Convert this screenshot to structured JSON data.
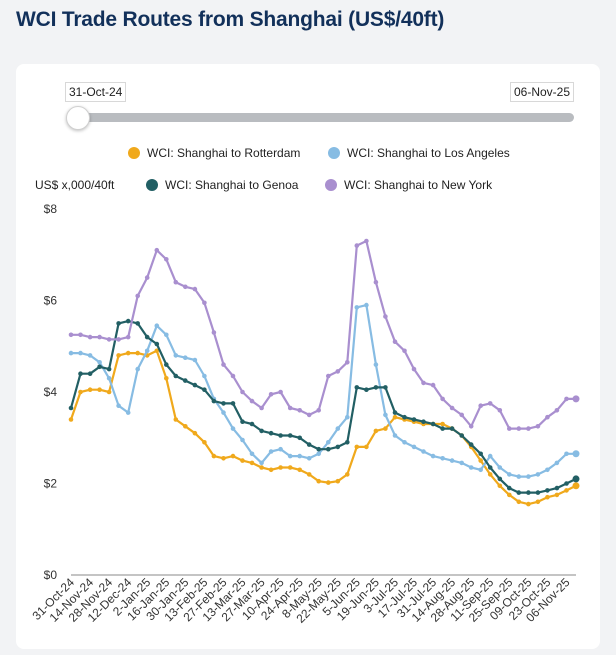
{
  "page": {
    "title": "WCI Trade Routes from Shanghai (US$/40ft)"
  },
  "range": {
    "start_label": "31-Oct-24",
    "end_label": "06-Nov-25"
  },
  "chart_data": {
    "type": "line",
    "ylabel": "US$ x,000/40ft",
    "ylim": [
      0,
      8
    ],
    "y_ticks": [
      0,
      2,
      4,
      6,
      8
    ],
    "y_tick_labels": [
      "$0",
      "$2",
      "$4",
      "$6",
      "$8"
    ],
    "grid": false,
    "legend": "top",
    "x_tick_labels": [
      "31-Oct-24",
      "14-Nov-24",
      "28-Nov-24",
      "12-Dec-24",
      "2-Jan-25",
      "16-Jan-25",
      "30-Jan-25",
      "13-Feb-25",
      "27-Feb-25",
      "13-Mar-25",
      "27-Mar-25",
      "10-Apr-25",
      "24-Apr-25",
      "8-May-25",
      "22-May-25",
      "5-Jun-25",
      "19-Jun-25",
      "3-Jul-25",
      "17-Jul-25",
      "31-Jul-25",
      "14-Aug-25",
      "28-Aug-25",
      "11-Sep-25",
      "25-Sep-25",
      "09-Oct-25",
      "23-Oct-25",
      "06-Nov-25"
    ],
    "x": [
      "31-Oct-24",
      "07-Nov-24",
      "14-Nov-24",
      "21-Nov-24",
      "28-Nov-24",
      "05-Dec-24",
      "12-Dec-24",
      "19-Dec-24",
      "26-Dec-24",
      "02-Jan-25",
      "09-Jan-25",
      "16-Jan-25",
      "23-Jan-25",
      "30-Jan-25",
      "06-Feb-25",
      "13-Feb-25",
      "20-Feb-25",
      "27-Feb-25",
      "06-Mar-25",
      "13-Mar-25",
      "20-Mar-25",
      "27-Mar-25",
      "03-Apr-25",
      "10-Apr-25",
      "17-Apr-25",
      "24-Apr-25",
      "01-May-25",
      "08-May-25",
      "15-May-25",
      "22-May-25",
      "29-May-25",
      "05-Jun-25",
      "12-Jun-25",
      "19-Jun-25",
      "26-Jun-25",
      "03-Jul-25",
      "10-Jul-25",
      "17-Jul-25",
      "24-Jul-25",
      "31-Jul-25",
      "07-Aug-25",
      "14-Aug-25",
      "21-Aug-25",
      "28-Aug-25",
      "04-Sep-25",
      "11-Sep-25",
      "18-Sep-25",
      "25-Sep-25",
      "02-Oct-25",
      "09-Oct-25",
      "16-Oct-25",
      "23-Oct-25",
      "30-Oct-25",
      "06-Nov-25"
    ],
    "series": [
      {
        "name": "WCI: Shanghai to Rotterdam",
        "color": "#f0a91c",
        "values": [
          3.4,
          4.0,
          4.05,
          4.05,
          4.0,
          4.8,
          4.85,
          4.85,
          4.8,
          4.9,
          4.3,
          3.4,
          3.25,
          3.1,
          2.9,
          2.6,
          2.55,
          2.6,
          2.5,
          2.45,
          2.35,
          2.3,
          2.35,
          2.35,
          2.3,
          2.2,
          2.05,
          2.02,
          2.05,
          2.2,
          2.8,
          2.8,
          3.15,
          3.2,
          3.45,
          3.4,
          3.35,
          3.3,
          3.3,
          3.3,
          3.2,
          3.05,
          2.8,
          2.5,
          2.2,
          1.95,
          1.75,
          1.6,
          1.55,
          1.6,
          1.7,
          1.75,
          1.85,
          1.95
        ]
      },
      {
        "name": "WCI: Shanghai to Los Angeles",
        "color": "#87bce3",
        "values": [
          4.85,
          4.85,
          4.8,
          4.65,
          4.3,
          3.7,
          3.55,
          4.5,
          4.9,
          5.45,
          5.25,
          4.8,
          4.75,
          4.7,
          4.35,
          3.85,
          3.55,
          3.2,
          2.95,
          2.65,
          2.45,
          2.7,
          2.75,
          2.6,
          2.6,
          2.55,
          2.65,
          2.9,
          3.2,
          3.45,
          5.85,
          5.9,
          4.6,
          3.5,
          3.05,
          2.9,
          2.8,
          2.7,
          2.6,
          2.55,
          2.5,
          2.45,
          2.35,
          2.3,
          2.6,
          2.35,
          2.2,
          2.15,
          2.15,
          2.2,
          2.3,
          2.45,
          2.65,
          2.65
        ]
      },
      {
        "name": "WCI: Shanghai to Genoa",
        "color": "#225f64",
        "values": [
          3.65,
          4.4,
          4.4,
          4.55,
          4.5,
          5.5,
          5.55,
          5.5,
          5.2,
          5.05,
          4.6,
          4.35,
          4.25,
          4.15,
          4.05,
          3.8,
          3.75,
          3.75,
          3.35,
          3.3,
          3.15,
          3.1,
          3.05,
          3.05,
          3.0,
          2.85,
          2.75,
          2.75,
          2.8,
          2.9,
          4.1,
          4.05,
          4.1,
          4.1,
          3.55,
          3.45,
          3.4,
          3.35,
          3.3,
          3.2,
          3.2,
          3.05,
          2.85,
          2.65,
          2.35,
          2.1,
          1.9,
          1.8,
          1.8,
          1.8,
          1.85,
          1.9,
          2.0,
          2.1
        ]
      },
      {
        "name": "WCI: Shanghai to New York",
        "color": "#a98fcf",
        "values": [
          5.25,
          5.25,
          5.2,
          5.2,
          5.15,
          5.15,
          5.2,
          6.1,
          6.5,
          7.1,
          6.9,
          6.4,
          6.3,
          6.25,
          5.95,
          5.3,
          4.6,
          4.35,
          4.0,
          3.8,
          3.65,
          3.95,
          4.0,
          3.65,
          3.6,
          3.5,
          3.6,
          4.35,
          4.45,
          4.65,
          7.2,
          7.3,
          6.4,
          5.65,
          5.1,
          4.9,
          4.5,
          4.2,
          4.15,
          3.85,
          3.65,
          3.5,
          3.25,
          3.7,
          3.75,
          3.6,
          3.2,
          3.2,
          3.2,
          3.25,
          3.45,
          3.6,
          3.85,
          3.85
        ]
      }
    ]
  }
}
